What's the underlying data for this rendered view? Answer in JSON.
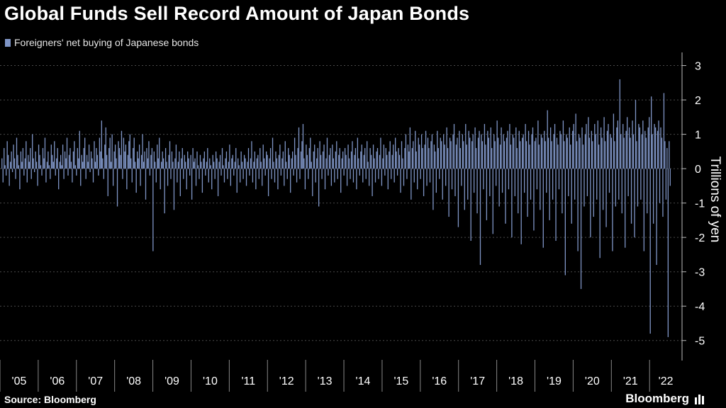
{
  "header": {
    "title": "Global Funds Sell Record Amount of Japan Bonds"
  },
  "legend": {
    "label": "Foreigners' net buying of Japanese bonds"
  },
  "footer": {
    "source": "Source: Bloomberg",
    "brand": "Bloomberg"
  },
  "colors": {
    "background": "#000000",
    "bar": "#7f95c6",
    "grid": "#4a4a4a",
    "text": "#ffffff"
  },
  "chart_data": {
    "type": "bar",
    "title": "Global Funds Sell Record Amount of Japan Bonds",
    "series_name": "Foreigners' net buying of Japanese bonds",
    "ylabel": "Trillions of yen",
    "xlabel": "",
    "ylim": [
      -5.5,
      3.3
    ],
    "yticks": [
      3,
      2,
      1,
      0,
      -1,
      -2,
      -3,
      -4,
      -5
    ],
    "xticks": [
      "'05",
      "'06",
      "'07",
      "'08",
      "'09",
      "'10",
      "'11",
      "'12",
      "'13",
      "'14",
      "'15",
      "'16",
      "'17",
      "'18",
      "'19",
      "'20",
      "'21",
      "'22"
    ],
    "x_unit": "week",
    "x_start": 2005.0,
    "x_end": 2022.85,
    "legend_position": "top-left",
    "grid": true,
    "values": [
      0.3,
      -0.4,
      0.6,
      0.1,
      -0.2,
      0.8,
      0.4,
      -0.5,
      0.2,
      0.5,
      -0.1,
      0.7,
      0.3,
      -0.3,
      0.9,
      0.4,
      0.1,
      -0.6,
      0.5,
      0.2,
      0.6,
      -0.2,
      0.3,
      0.8,
      -0.4,
      0.4,
      0.2,
      0.6,
      -0.3,
      1.0,
      0.3,
      -0.1,
      0.5,
      0.2,
      -0.5,
      0.7,
      0.4,
      0.1,
      -0.2,
      0.6,
      0.3,
      0.9,
      -0.4,
      0.2,
      0.5,
      0.1,
      -0.3,
      0.7,
      0.4,
      0.2,
      0.8,
      -0.2,
      0.3,
      0.6,
      -0.6,
      0.2,
      0.4,
      0.1,
      0.7,
      -0.3,
      0.5,
      0.3,
      0.9,
      -0.2,
      0.4,
      0.6,
      0.2,
      -0.4,
      0.5,
      0.8,
      0.1,
      -0.2,
      0.6,
      0.3,
      1.1,
      -0.5,
      0.4,
      0.2,
      0.6,
      0.9,
      -0.3,
      0.4,
      0.2,
      0.7,
      -0.1,
      0.5,
      0.3,
      -0.4,
      0.8,
      0.2,
      0.6,
      0.4,
      -0.2,
      0.9,
      0.5,
      1.4,
      0.3,
      -0.3,
      0.7,
      1.2,
      0.4,
      -0.8,
      0.6,
      0.9,
      0.2,
      1.0,
      -0.5,
      0.5,
      0.7,
      0.3,
      -1.1,
      0.8,
      0.6,
      0.4,
      1.1,
      -0.3,
      0.9,
      0.5,
      0.7,
      -0.6,
      0.4,
      0.8,
      1.0,
      0.3,
      -0.4,
      0.6,
      0.9,
      0.2,
      -0.7,
      0.5,
      0.3,
      0.7,
      -0.5,
      0.4,
      1.0,
      0.2,
      0.5,
      -0.9,
      0.6,
      0.3,
      0.8,
      -0.2,
      0.4,
      0.6,
      -2.4,
      0.5,
      0.2,
      -0.4,
      0.7,
      0.3,
      0.9,
      -0.6,
      0.2,
      0.5,
      0.3,
      -1.3,
      0.6,
      0.2,
      -0.5,
      0.4,
      0.8,
      -0.3,
      0.5,
      0.2,
      -1.2,
      0.3,
      0.7,
      -0.4,
      0.2,
      0.5,
      -0.8,
      0.3,
      0.6,
      -0.3,
      0.4,
      0.2,
      -0.6,
      0.5,
      0.3,
      -0.2,
      0.4,
      -0.9,
      0.6,
      0.2,
      0.3,
      -0.5,
      0.5,
      0.1,
      -0.3,
      0.4,
      0.2,
      -0.7,
      0.3,
      0.5,
      -0.2,
      0.2,
      0.6,
      -0.4,
      0.3,
      0.1,
      -0.6,
      0.4,
      0.2,
      -0.3,
      0.5,
      0.3,
      -0.8,
      0.2,
      0.4,
      -0.2,
      0.6,
      0.1,
      -0.4,
      0.3,
      0.5,
      -0.3,
      0.2,
      0.7,
      -0.5,
      0.3,
      0.4,
      -0.2,
      0.2,
      0.6,
      -0.7,
      0.3,
      0.1,
      -0.4,
      0.5,
      0.2,
      -0.3,
      0.4,
      0.3,
      -0.5,
      0.2,
      0.6,
      -0.2,
      0.3,
      0.8,
      -0.4,
      0.2,
      0.5,
      -0.6,
      0.3,
      0.4,
      -0.3,
      0.6,
      0.2,
      -0.5,
      0.7,
      0.3,
      -0.2,
      0.5,
      0.4,
      -0.8,
      0.3,
      0.6,
      -0.3,
      0.9,
      0.2,
      -0.4,
      0.5,
      0.3,
      -0.6,
      0.4,
      0.7,
      -0.2,
      0.3,
      0.5,
      -0.5,
      0.8,
      0.2,
      -0.3,
      0.6,
      0.4,
      -0.7,
      0.3,
      0.5,
      -0.2,
      0.9,
      0.4,
      -0.4,
      0.6,
      1.2,
      -0.3,
      0.5,
      0.8,
      1.3,
      0.3,
      -0.6,
      0.7,
      0.4,
      -0.3,
      0.6,
      0.9,
      0.2,
      -0.8,
      0.5,
      0.7,
      -0.4,
      0.3,
      0.6,
      -1.1,
      0.8,
      0.4,
      -0.3,
      0.5,
      0.7,
      -0.6,
      0.3,
      0.9,
      -0.2,
      0.4,
      0.6,
      -0.5,
      0.7,
      0.3,
      -0.4,
      0.5,
      0.8,
      -0.3,
      0.4,
      0.6,
      -0.7,
      0.3,
      0.5,
      -0.2,
      0.6,
      0.4,
      -0.5,
      0.7,
      0.3,
      -0.3,
      0.5,
      0.8,
      -0.4,
      0.4,
      0.6,
      -0.6,
      0.9,
      0.3,
      -0.2,
      0.5,
      0.7,
      -0.4,
      0.4,
      0.6,
      -0.3,
      0.8,
      0.2,
      -0.5,
      0.6,
      0.4,
      -0.8,
      0.7,
      0.3,
      -0.4,
      0.5,
      0.6,
      -0.3,
      0.4,
      0.9,
      -0.5,
      0.3,
      0.7,
      -0.2,
      0.6,
      0.4,
      -0.6,
      0.5,
      0.8,
      -0.3,
      0.4,
      0.7,
      -0.4,
      0.9,
      0.5,
      -0.2,
      0.6,
      0.4,
      -0.7,
      0.8,
      0.3,
      -0.5,
      0.6,
      1.0,
      -0.3,
      0.7,
      0.5,
      1.2,
      -0.9,
      0.6,
      0.8,
      -0.4,
      1.1,
      0.5,
      -0.6,
      0.9,
      0.7,
      -0.3,
      1.0,
      0.6,
      -0.8,
      0.7,
      1.1,
      -0.5,
      0.9,
      0.6,
      -0.4,
      0.8,
      1.0,
      -1.2,
      0.7,
      0.5,
      -0.7,
      1.1,
      0.6,
      -0.3,
      0.9,
      0.8,
      -0.9,
      1.0,
      0.7,
      -0.5,
      1.2,
      0.6,
      -1.4,
      0.9,
      0.8,
      -0.6,
      1.0,
      1.3,
      -0.8,
      0.7,
      0.9,
      -1.7,
      1.1,
      0.6,
      -0.5,
      1.0,
      0.8,
      -1.2,
      1.3,
      0.7,
      -0.9,
      1.1,
      0.9,
      -2.1,
      0.8,
      1.0,
      -0.7,
      1.2,
      0.6,
      -1.3,
      0.9,
      1.1,
      -2.8,
      1.0,
      0.8,
      -0.6,
      1.3,
      0.7,
      -1.5,
      1.1,
      0.9,
      -0.8,
      1.2,
      0.6,
      -1.9,
      1.0,
      0.8,
      -0.5,
      1.4,
      0.9,
      -1.1,
      0.7,
      1.2,
      -0.7,
      1.0,
      0.8,
      -1.6,
      0.9,
      1.1,
      -0.6,
      1.3,
      0.7,
      -2.0,
      1.0,
      0.9,
      -0.8,
      1.2,
      0.6,
      -1.3,
      1.1,
      0.8,
      -2.2,
      0.9,
      1.0,
      -0.7,
      1.3,
      0.8,
      -1.4,
      1.1,
      0.7,
      -0.9,
      1.0,
      1.2,
      -1.8,
      0.8,
      0.9,
      -0.6,
      1.4,
      0.7,
      -1.2,
      1.0,
      0.9,
      -2.3,
      1.1,
      0.8,
      -0.7,
      1.7,
      0.9,
      -1.5,
      1.2,
      0.8,
      -0.9,
      1.0,
      1.3,
      -2.1,
      0.9,
      0.7,
      -0.6,
      1.1,
      1.0,
      -1.3,
      1.4,
      0.8,
      -3.1,
      1.0,
      0.9,
      -0.8,
      1.2,
      0.7,
      -1.6,
      1.1,
      1.3,
      -0.9,
      1.6,
      0.8,
      -2.4,
      1.0,
      0.9,
      -3.5,
      1.2,
      0.7,
      -1.1,
      1.0,
      1.3,
      -0.8,
      1.5,
      0.9,
      -2.0,
      1.1,
      0.8,
      -1.4,
      1.3,
      1.0,
      -0.9,
      1.4,
      0.7,
      -2.6,
      1.2,
      0.9,
      -1.2,
      1.5,
      0.8,
      -1.7,
      1.1,
      1.3,
      -0.7,
      1.0,
      0.9,
      -2.4,
      1.6,
      0.8,
      -1.1,
      1.2,
      1.4,
      -0.9,
      2.6,
      1.0,
      -1.3,
      1.3,
      0.9,
      -2.3,
      1.1,
      1.5,
      -0.8,
      1.2,
      0.9,
      -1.6,
      1.4,
      1.0,
      -2.0,
      2.0,
      0.8,
      -1.1,
      1.3,
      1.2,
      -0.9,
      1.0,
      1.4,
      -2.4,
      1.1,
      0.9,
      -1.3,
      1.2,
      1.5,
      -4.8,
      2.1,
      1.0,
      -1.6,
      1.3,
      1.2,
      -2.8,
      1.1,
      1.4,
      -1.0,
      1.2,
      0.9,
      -1.4,
      2.2,
      0.8,
      -0.9,
      0.6,
      -4.9,
      0.8,
      -0.5
    ]
  }
}
